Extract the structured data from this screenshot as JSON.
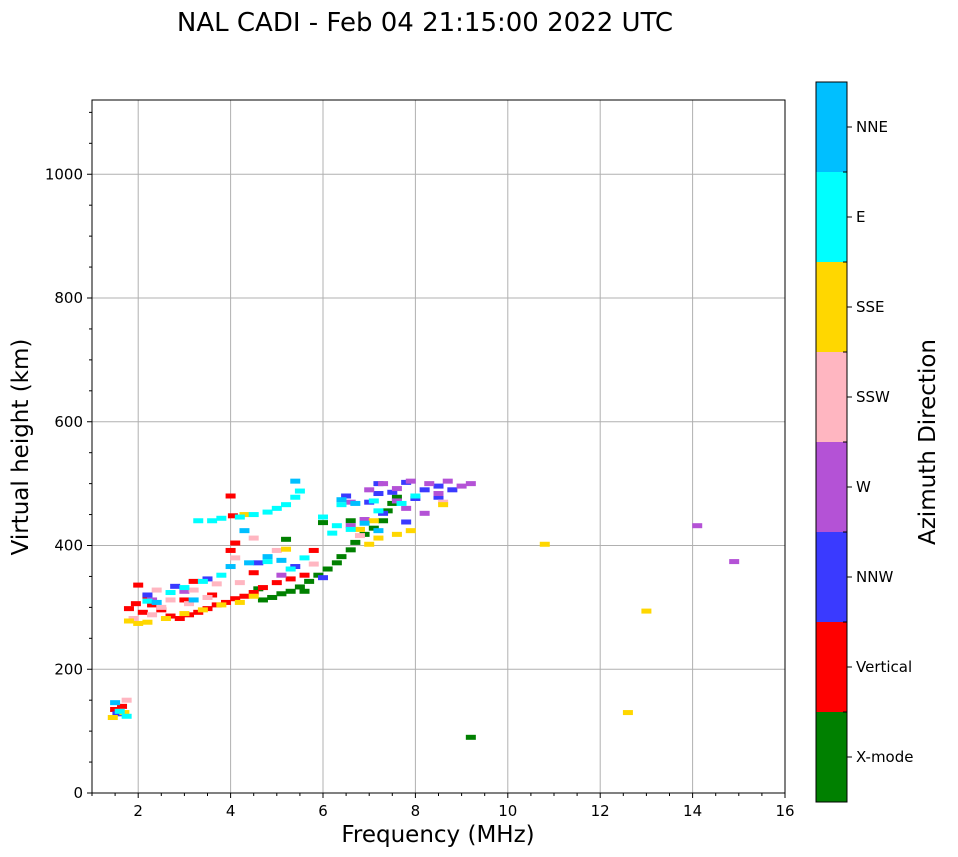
{
  "chart_data": {
    "type": "scatter",
    "title": "NAL CADI - Feb 04 21:15:00 2022 UTC",
    "xlabel": "Frequency (MHz)",
    "ylabel": "Virtual height (km)",
    "xlim": [
      1,
      16
    ],
    "ylim": [
      0,
      1120
    ],
    "xticks": [
      2,
      4,
      6,
      8,
      10,
      12,
      14,
      16
    ],
    "yticks": [
      0,
      200,
      400,
      600,
      800,
      1000
    ],
    "grid": true,
    "colorbar": {
      "label": "Azimuth Direction",
      "categories": [
        {
          "name": "X-mode",
          "color": "#008000"
        },
        {
          "name": "Vertical",
          "color": "#ff0000"
        },
        {
          "name": "NNW",
          "color": "#3a3aff"
        },
        {
          "name": "W",
          "color": "#b452d6"
        },
        {
          "name": "SSW",
          "color": "#ffb6c1"
        },
        {
          "name": "SSE",
          "color": "#ffd700"
        },
        {
          "name": "E",
          "color": "#00ffff"
        },
        {
          "name": "NNE",
          "color": "#00bfff"
        }
      ]
    },
    "series": [
      {
        "name": "X-mode",
        "points": [
          [
            4.7,
            312
          ],
          [
            4.9,
            316
          ],
          [
            5.1,
            322
          ],
          [
            5.3,
            326
          ],
          [
            5.5,
            333
          ],
          [
            5.7,
            342
          ],
          [
            5.9,
            352
          ],
          [
            6.1,
            362
          ],
          [
            6.3,
            372
          ],
          [
            6.4,
            382
          ],
          [
            6.6,
            393
          ],
          [
            6.7,
            405
          ],
          [
            6.9,
            418
          ],
          [
            7.1,
            428
          ],
          [
            7.3,
            440
          ],
          [
            7.4,
            456
          ],
          [
            7.5,
            468
          ],
          [
            7.6,
            478
          ],
          [
            6.6,
            440
          ],
          [
            6.0,
            437
          ],
          [
            5.2,
            410
          ],
          [
            4.6,
            330
          ],
          [
            5.6,
            326
          ],
          [
            9.2,
            90
          ]
        ]
      },
      {
        "name": "Vertical",
        "points": [
          [
            1.5,
            135
          ],
          [
            1.65,
            140
          ],
          [
            1.8,
            298
          ],
          [
            1.95,
            306
          ],
          [
            2.1,
            292
          ],
          [
            2.3,
            304
          ],
          [
            2.5,
            296
          ],
          [
            2.7,
            286
          ],
          [
            2.9,
            282
          ],
          [
            3.1,
            288
          ],
          [
            3.3,
            292
          ],
          [
            3.5,
            298
          ],
          [
            3.7,
            304
          ],
          [
            3.9,
            308
          ],
          [
            4.1,
            314
          ],
          [
            4.3,
            318
          ],
          [
            4.5,
            324
          ],
          [
            4.7,
            332
          ],
          [
            5.0,
            340
          ],
          [
            5.3,
            346
          ],
          [
            5.6,
            352
          ],
          [
            3.0,
            312
          ],
          [
            3.6,
            320
          ],
          [
            2.2,
            318
          ],
          [
            4.0,
            480
          ],
          [
            4.05,
            448
          ],
          [
            4.1,
            404
          ],
          [
            4.0,
            392
          ],
          [
            2.0,
            336
          ],
          [
            3.2,
            342
          ],
          [
            5.8,
            392
          ],
          [
            4.5,
            356
          ]
        ]
      },
      {
        "name": "NNW",
        "points": [
          [
            1.55,
            128
          ],
          [
            2.2,
            320
          ],
          [
            2.8,
            334
          ],
          [
            3.5,
            346
          ],
          [
            4.6,
            372
          ],
          [
            5.4,
            366
          ],
          [
            6.0,
            348
          ],
          [
            6.5,
            480
          ],
          [
            7.2,
            500
          ],
          [
            7.5,
            486
          ],
          [
            7.8,
            502
          ],
          [
            8.0,
            476
          ],
          [
            8.2,
            490
          ],
          [
            8.5,
            496
          ],
          [
            8.8,
            490
          ],
          [
            7.0,
            470
          ],
          [
            7.3,
            452
          ],
          [
            7.8,
            438
          ],
          [
            8.5,
            478
          ],
          [
            7.2,
            484
          ]
        ]
      },
      {
        "name": "W",
        "points": [
          [
            7.0,
            490
          ],
          [
            7.3,
            500
          ],
          [
            7.6,
            492
          ],
          [
            7.9,
            504
          ],
          [
            8.3,
            500
          ],
          [
            8.7,
            504
          ],
          [
            9.0,
            496
          ],
          [
            9.2,
            500
          ],
          [
            8.2,
            452
          ],
          [
            7.8,
            460
          ],
          [
            6.6,
            470
          ],
          [
            6.9,
            442
          ],
          [
            6.6,
            432
          ],
          [
            5.1,
            352
          ],
          [
            14.1,
            432
          ],
          [
            14.9,
            374
          ],
          [
            2.3,
            312
          ],
          [
            3.0,
            326
          ],
          [
            8.5,
            484
          ],
          [
            7.6,
            472
          ]
        ]
      },
      {
        "name": "SSW",
        "points": [
          [
            1.75,
            150
          ],
          [
            1.9,
            282
          ],
          [
            2.3,
            288
          ],
          [
            2.5,
            300
          ],
          [
            2.7,
            312
          ],
          [
            3.1,
            306
          ],
          [
            3.5,
            316
          ],
          [
            3.2,
            328
          ],
          [
            2.4,
            328
          ],
          [
            4.2,
            340
          ],
          [
            4.5,
            412
          ],
          [
            4.1,
            380
          ],
          [
            5.0,
            392
          ],
          [
            5.8,
            370
          ],
          [
            3.7,
            338
          ],
          [
            8.6,
            470
          ],
          [
            6.8,
            416
          ]
        ]
      },
      {
        "name": "SSE",
        "points": [
          [
            1.45,
            122
          ],
          [
            1.7,
            130
          ],
          [
            1.8,
            278
          ],
          [
            2.0,
            274
          ],
          [
            2.2,
            276
          ],
          [
            2.6,
            282
          ],
          [
            3.0,
            290
          ],
          [
            3.4,
            296
          ],
          [
            3.8,
            304
          ],
          [
            4.2,
            308
          ],
          [
            4.5,
            318
          ],
          [
            4.3,
            450
          ],
          [
            5.2,
            394
          ],
          [
            7.0,
            402
          ],
          [
            7.2,
            412
          ],
          [
            7.6,
            418
          ],
          [
            7.9,
            424
          ],
          [
            8.6,
            466
          ],
          [
            7.1,
            440
          ],
          [
            10.8,
            402
          ],
          [
            12.6,
            130
          ],
          [
            13.0,
            294
          ],
          [
            6.8,
            426
          ]
        ]
      },
      {
        "name": "E",
        "points": [
          [
            1.6,
            132
          ],
          [
            1.75,
            124
          ],
          [
            2.2,
            310
          ],
          [
            2.7,
            324
          ],
          [
            3.0,
            332
          ],
          [
            3.4,
            342
          ],
          [
            3.8,
            352
          ],
          [
            3.3,
            440
          ],
          [
            3.6,
            440
          ],
          [
            3.8,
            444
          ],
          [
            4.2,
            446
          ],
          [
            4.5,
            450
          ],
          [
            4.8,
            454
          ],
          [
            5.0,
            460
          ],
          [
            5.2,
            466
          ],
          [
            5.4,
            478
          ],
          [
            5.5,
            488
          ],
          [
            6.0,
            446
          ],
          [
            6.3,
            432
          ],
          [
            6.6,
            426
          ],
          [
            7.2,
            456
          ],
          [
            7.1,
            472
          ],
          [
            7.7,
            468
          ],
          [
            8.0,
            480
          ],
          [
            6.4,
            466
          ],
          [
            5.3,
            362
          ],
          [
            5.6,
            380
          ],
          [
            6.2,
            420
          ],
          [
            4.8,
            374
          ]
        ]
      },
      {
        "name": "NNE",
        "points": [
          [
            1.5,
            146
          ],
          [
            2.4,
            308
          ],
          [
            3.2,
            312
          ],
          [
            4.0,
            366
          ],
          [
            4.4,
            372
          ],
          [
            4.8,
            382
          ],
          [
            5.1,
            376
          ],
          [
            5.4,
            504
          ],
          [
            6.4,
            474
          ],
          [
            6.7,
            468
          ],
          [
            6.9,
            436
          ],
          [
            7.2,
            424
          ],
          [
            4.3,
            424
          ]
        ]
      }
    ]
  }
}
